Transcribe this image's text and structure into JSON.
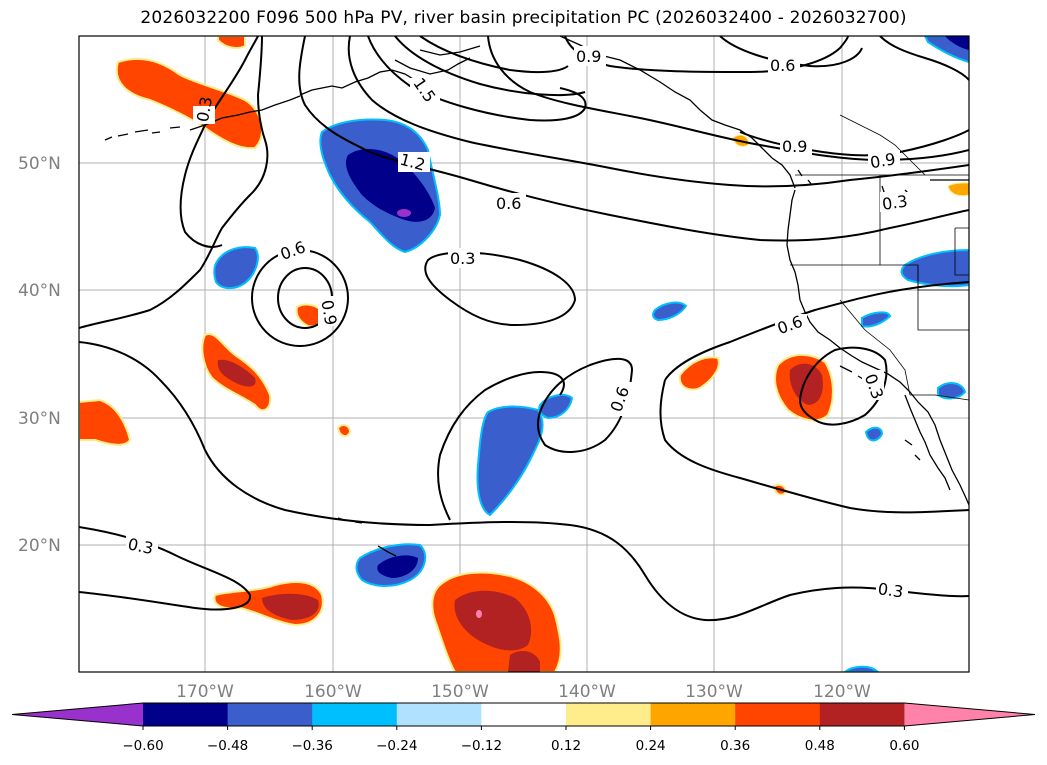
{
  "title": "2026032200 F096 500 hPa PV, river basin precipitation PC (2026032400 - 2026032700)",
  "lat_labels": [
    "50°N",
    "40°N",
    "30°N",
    "20°N"
  ],
  "lon_labels": [
    "170°W",
    "160°W",
    "150°W",
    "140°W",
    "130°W",
    "120°W"
  ],
  "contour_labels": [
    "0.3",
    "0.6",
    "0.9",
    "1.2",
    "1.5",
    "0.6",
    "0.3",
    "0.6",
    "0.9",
    "0.6",
    "0.9",
    "0.9",
    "0.3",
    "0.6",
    "0.3",
    "0.3",
    "0.3",
    "0.3"
  ],
  "colorbar": {
    "tick_labels": [
      "−0.60",
      "−0.48",
      "−0.36",
      "−0.24",
      "−0.12",
      "0.12",
      "0.24",
      "0.36",
      "0.48",
      "0.60"
    ],
    "colors": [
      "#9932cc",
      "#00008b",
      "#3a5fcd",
      "#00bfff",
      "#b0e2ff",
      "#ffffff",
      "#ffec8b",
      "#ffa500",
      "#ff4500",
      "#b22222",
      "#ff82ab"
    ]
  }
}
